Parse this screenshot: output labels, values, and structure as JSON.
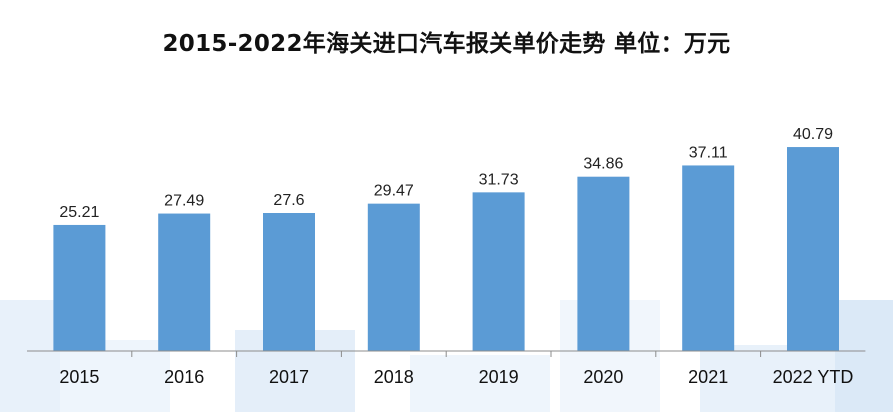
{
  "chart_data": {
    "type": "bar",
    "title": "2015-2022年海关进口汽车报关单价走势 单位：万元",
    "categories": [
      "2015",
      "2016",
      "2017",
      "2018",
      "2019",
      "2020",
      "2021",
      "2022 YTD"
    ],
    "values": [
      25.21,
      27.49,
      27.6,
      29.47,
      31.73,
      34.86,
      37.11,
      40.79
    ],
    "value_labels": [
      "25.21",
      "27.49",
      "27.6",
      "29.47",
      "31.73",
      "34.86",
      "37.11",
      "40.79"
    ],
    "xlabel": "",
    "ylabel": "",
    "ylim": [
      0,
      50
    ],
    "grid": false,
    "legend": "none",
    "colors": {
      "bar": "#5b9bd5",
      "decoration": "#dbe9f7"
    }
  }
}
